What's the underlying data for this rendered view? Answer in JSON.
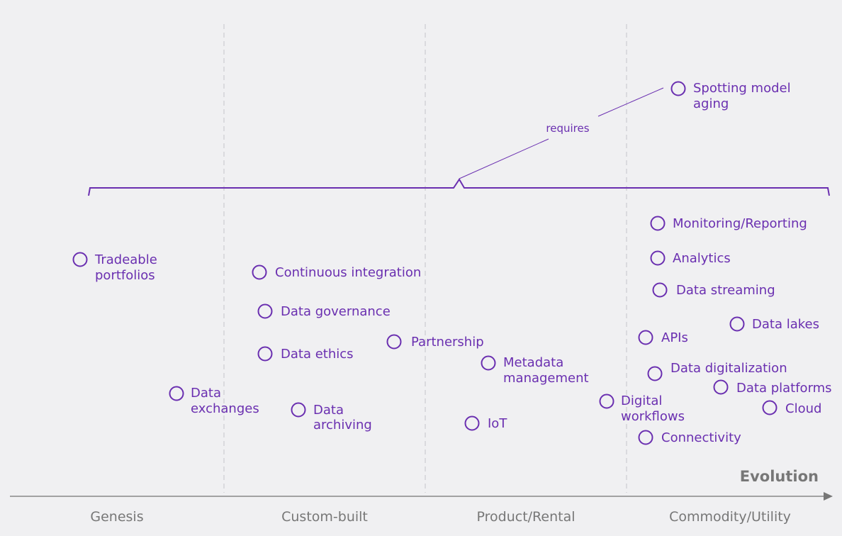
{
  "axis": {
    "title": "Evolution",
    "stages": [
      "Genesis",
      "Custom-built",
      "Product/Rental",
      "Commodity/Utility"
    ]
  },
  "colors": {
    "accent": "#6a2fb0",
    "axis": "#888888",
    "background": "#f0f0f2"
  },
  "relation": {
    "label": "requires"
  },
  "nodes": {
    "spotting": [
      "Spotting model",
      "aging"
    ],
    "monitoring": "Monitoring/Reporting",
    "analytics": "Analytics",
    "streaming": "Data streaming",
    "lakes": "Data lakes",
    "apis": "APIs",
    "digitalization": "Data digitalization",
    "platforms": "Data platforms",
    "cloud": "Cloud",
    "workflows": [
      "Digital",
      "workflows"
    ],
    "connectivity": "Connectivity",
    "iot": "IoT",
    "metadata": [
      "Metadata",
      "management"
    ],
    "partnership": "Partnership",
    "ci": "Continuous integration",
    "governance": "Data governance",
    "ethics": "Data ethics",
    "archiving": [
      "Data",
      "archiving"
    ],
    "exchanges": [
      "Data",
      "exchanges"
    ],
    "portfolios": [
      "Tradeable",
      "portfolios"
    ]
  }
}
